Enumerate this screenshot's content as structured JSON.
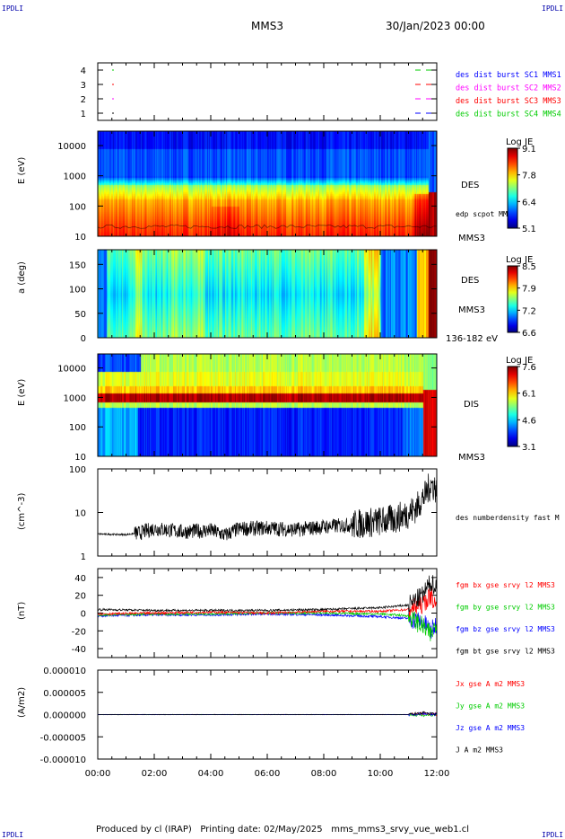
{
  "header": {
    "corner_label": "IPDLI",
    "spacecraft": "MMS3",
    "date": "30/Jan/2023 00:00"
  },
  "footer": {
    "produced_by": "Produced by cl (IRAP)",
    "printing_date": "Printing date: 02/May/2025",
    "script_name": "mms_mms3_srvy_vue_web1.cl"
  },
  "colors": {
    "mms1": "#0000ff",
    "mms2": "#ff00ff",
    "mms3": "#ff0000",
    "mms4": "#00cc00",
    "bx": "#ff0000",
    "by": "#00cc00",
    "bz": "#0000ff",
    "bt": "#000000"
  },
  "chart_data": [
    {
      "type": "scatter",
      "panel": "burst-availability",
      "ylim": [
        0.5,
        4.5
      ],
      "y_ticks": [
        "1",
        "2",
        "3",
        "4"
      ],
      "x_ticks": [
        "00:00",
        "02:00",
        "04:00",
        "06:00",
        "08:00",
        "10:00",
        "12:00"
      ],
      "legend": [
        {
          "label": "des dist burst SC1 MMS1",
          "color": "#0000ff"
        },
        {
          "label": "des dist burst SC2 MMS2",
          "color": "#ff00ff"
        },
        {
          "label": "des dist burst SC3 MMS3",
          "color": "#ff0000"
        },
        {
          "label": "des dist burst SC4 MMS4",
          "color": "#00cc00"
        }
      ]
    },
    {
      "type": "heatmap",
      "panel": "des-energy",
      "ylabel": "E (eV)",
      "yscale": "log",
      "ylim": [
        10,
        30000
      ],
      "y_ticks": [
        "10000",
        "1000",
        "100",
        "10"
      ],
      "right_labels": [
        "DES",
        "edp scpot MMS3",
        "MMS3"
      ],
      "colorbar": {
        "title": "Log JE",
        "ticks": [
          "9.1",
          "7.8",
          "6.4",
          "5.1"
        ]
      }
    },
    {
      "type": "heatmap",
      "panel": "des-pitch-angle",
      "ylabel": "a (deg)",
      "ylim": [
        0,
        180
      ],
      "y_ticks": [
        "150",
        "100",
        "50",
        "0"
      ],
      "right_labels": [
        "DES",
        "MMS3",
        "136-182 eV"
      ],
      "colorbar": {
        "title": "Log JE",
        "ticks": [
          "8.5",
          "7.9",
          "7.2",
          "6.6"
        ]
      }
    },
    {
      "type": "heatmap",
      "panel": "dis-energy",
      "ylabel": "E (eV)",
      "yscale": "log",
      "ylim": [
        10,
        30000
      ],
      "y_ticks": [
        "10000",
        "1000",
        "100",
        "10"
      ],
      "right_labels": [
        "DIS",
        "MMS3"
      ],
      "colorbar": {
        "title": "Log JE",
        "ticks": [
          "7.6",
          "6.1",
          "4.6",
          "3.1"
        ]
      }
    },
    {
      "type": "line",
      "panel": "density",
      "ylabel": "(cm^-3)",
      "yscale": "log",
      "ylim": [
        1,
        100
      ],
      "y_ticks": [
        "100",
        "10",
        "1"
      ],
      "x": [
        0,
        1,
        1.5,
        2,
        3,
        4,
        4.5,
        5,
        6,
        7,
        8,
        9,
        10,
        10.5,
        11,
        11.3,
        11.6,
        11.8,
        12
      ],
      "series": [
        {
          "name": "des numberdensity fast M",
          "values": [
            3.2,
            3.1,
            3.4,
            4.3,
            3.6,
            3.9,
            3.0,
            4.2,
            4.4,
            4.0,
            4.7,
            5.2,
            6.3,
            7.0,
            9.5,
            13.0,
            25.0,
            45.0,
            33.0
          ]
        }
      ]
    },
    {
      "type": "line",
      "panel": "magnetic-field",
      "ylabel": "(nT)",
      "ylim": [
        -50,
        50
      ],
      "y_ticks": [
        "40",
        "20",
        "0",
        "-20",
        "-40"
      ],
      "x": [
        0,
        2,
        4,
        6,
        8,
        10,
        11,
        11.5,
        11.8,
        12
      ],
      "series": [
        {
          "name": "fgm bx gse srvy l2 MMS3",
          "values": [
            -1,
            0,
            1,
            0,
            2,
            2,
            4,
            10,
            20,
            5
          ]
        },
        {
          "name": "fgm by gse srvy l2 MMS3",
          "values": [
            -2,
            -1,
            -1,
            0,
            0,
            -1,
            -3,
            -15,
            -25,
            -8
          ]
        },
        {
          "name": "fgm bz gse srvy l2 MMS3",
          "values": [
            -3,
            -2,
            -2,
            -1,
            -2,
            -4,
            -6,
            -10,
            -20,
            -12
          ]
        },
        {
          "name": "fgm bt gse srvy l2 MMS3",
          "values": [
            4,
            3,
            3,
            3,
            4,
            6,
            9,
            20,
            35,
            28
          ]
        }
      ]
    },
    {
      "type": "line",
      "panel": "current-density",
      "ylabel": "(A/m2)",
      "ylim": [
        -1e-05,
        1e-05
      ],
      "y_ticks": [
        "0.000010",
        "0.000005",
        "0.000000",
        "-0.000005",
        "-0.000010"
      ],
      "x_ticks": [
        "00:00",
        "02:00",
        "04:00",
        "06:00",
        "08:00",
        "10:00",
        "12:00"
      ],
      "x": [
        0,
        4,
        8,
        11,
        11.5,
        12
      ],
      "series": [
        {
          "name": "Jx gse A m2 MMS3",
          "values": [
            0,
            0,
            0,
            0,
            3e-07,
            0
          ]
        },
        {
          "name": "Jy gse A m2 MMS3",
          "values": [
            0,
            0,
            0,
            0,
            -2e-07,
            0
          ]
        },
        {
          "name": "Jz gse A m2 MMS3",
          "values": [
            0,
            0,
            0,
            0,
            2e-07,
            0
          ]
        },
        {
          "name": "J A m2 MMS3",
          "values": [
            0,
            0,
            0,
            0,
            4e-07,
            1e-07
          ]
        }
      ]
    }
  ]
}
